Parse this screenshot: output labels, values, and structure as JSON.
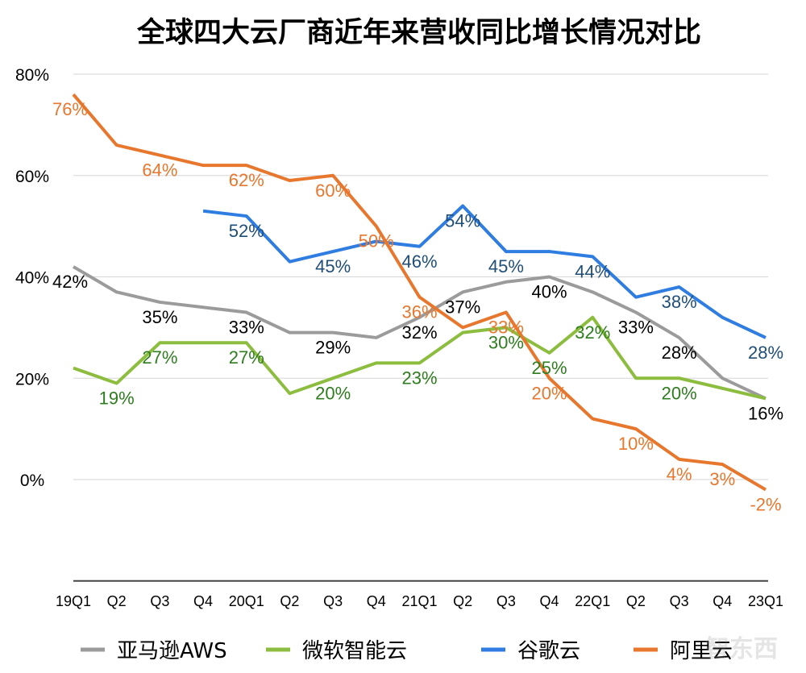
{
  "chart_data": {
    "type": "line",
    "title": "全球四大云厂商近年来营收同比增长情况对比",
    "xlabel": "",
    "ylabel": "",
    "categories": [
      "19Q1",
      "Q2",
      "Q3",
      "Q4",
      "20Q1",
      "Q2",
      "Q3",
      "Q4",
      "21Q1",
      "Q2",
      "Q3",
      "Q4",
      "22Q1",
      "Q2",
      "Q3",
      "Q4",
      "23Q1"
    ],
    "ylim": [
      -20,
      80
    ],
    "yticks": [
      "80%",
      "60%",
      "40%",
      "20%",
      "0%"
    ],
    "ytick_values": [
      80,
      60,
      40,
      20,
      0
    ],
    "grid": true,
    "legend_position": "bottom",
    "series": [
      {
        "name": "亚马逊AWS",
        "color": "#9b9b9b",
        "label_color": "#000000",
        "values": [
          42,
          37,
          35,
          34,
          33,
          29,
          29,
          28,
          32,
          37,
          39,
          40,
          37,
          33,
          28,
          20,
          16
        ],
        "labels": [
          "42%",
          null,
          "35%",
          null,
          "33%",
          null,
          "29%",
          null,
          "32%",
          "37%",
          null,
          "40%",
          null,
          "33%",
          "28%",
          null,
          "16%"
        ]
      },
      {
        "name": "微软智能云",
        "color": "#8cbd3f",
        "label_color": "#2e7d1e",
        "values": [
          22,
          19,
          27,
          27,
          27,
          17,
          20,
          23,
          23,
          29,
          30,
          25,
          32,
          20,
          20,
          18,
          16
        ],
        "labels": [
          null,
          "19%",
          "27%",
          null,
          "27%",
          null,
          "20%",
          null,
          "23%",
          null,
          "30%",
          "25%",
          "32%",
          null,
          "20%",
          null,
          null
        ]
      },
      {
        "name": "谷歌云",
        "color": "#2f7de1",
        "label_color": "#1f4e79",
        "values": [
          null,
          null,
          null,
          53,
          52,
          43,
          45,
          47,
          46,
          54,
          45,
          45,
          44,
          36,
          38,
          32,
          28
        ],
        "labels": [
          null,
          null,
          null,
          null,
          "52%",
          null,
          "45%",
          null,
          "46%",
          "54%",
          "45%",
          null,
          "44%",
          null,
          "38%",
          null,
          "28%"
        ]
      },
      {
        "name": "阿里云",
        "color": "#e8772e",
        "label_color": "#e8772e",
        "values": [
          76,
          66,
          64,
          62,
          62,
          59,
          60,
          50,
          36,
          30,
          33,
          20,
          12,
          10,
          4,
          3,
          -2
        ],
        "labels": [
          "76%",
          null,
          "64%",
          null,
          "62%",
          null,
          "60%",
          "50%",
          "36%",
          null,
          "33%",
          "20%",
          null,
          "10%",
          "4%",
          "3%",
          "-2%"
        ]
      }
    ]
  },
  "watermark": "智东西"
}
